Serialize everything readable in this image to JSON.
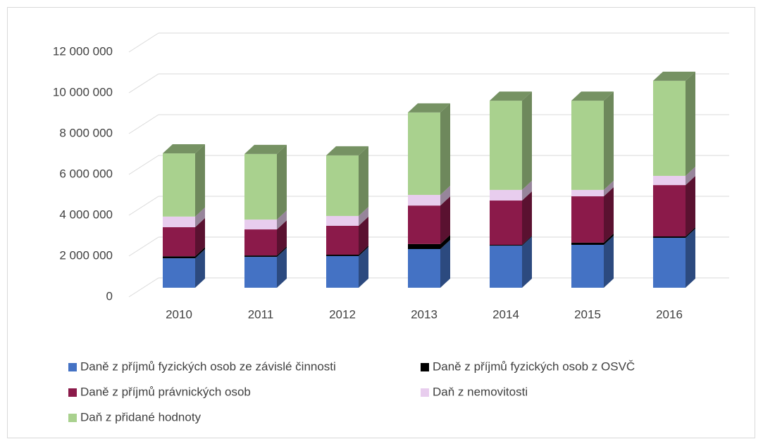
{
  "chart_data": {
    "type": "bar3d_stacked",
    "categories": [
      "2010",
      "2011",
      "2012",
      "2013",
      "2014",
      "2015",
      "2016"
    ],
    "series": [
      {
        "name": "Daně z příjmů fyzických osob ze závislé činnosti",
        "color": "#4472c4",
        "values": [
          1470000,
          1540000,
          1580000,
          1930000,
          2100000,
          2140000,
          2490000
        ]
      },
      {
        "name": "Daně z příjmů fyzických osob z OSVČ",
        "color": "#000000",
        "values": [
          100000,
          70000,
          70000,
          250000,
          40000,
          110000,
          70000
        ]
      },
      {
        "name": "Daně z příjmů právnických osob",
        "color": "#8b1a4a",
        "values": [
          1450000,
          1300000,
          1440000,
          1920000,
          2210000,
          2310000,
          2560000
        ]
      },
      {
        "name": "Daň z nemovitosti",
        "color": "#e8cdee",
        "values": [
          530000,
          490000,
          490000,
          530000,
          530000,
          320000,
          460000
        ]
      },
      {
        "name": "Daň z přidané hodnoty",
        "color": "#a9d18e",
        "values": [
          3150000,
          3270000,
          3020000,
          4110000,
          4450000,
          4450000,
          4740000
        ]
      }
    ],
    "ylim": [
      0,
      12000000
    ],
    "yticks": [
      0,
      {
        "value": 2000000,
        "label": "2 000 000"
      },
      {
        "value": 4000000,
        "label": "4 000 000"
      },
      {
        "value": 6000000,
        "label": "6 000 000"
      },
      {
        "value": 8000000,
        "label": "8 000 000"
      },
      {
        "value": 10000000,
        "label": "10 000 000"
      },
      {
        "value": 12000000,
        "label": "12 000 000"
      }
    ],
    "grid": true
  }
}
